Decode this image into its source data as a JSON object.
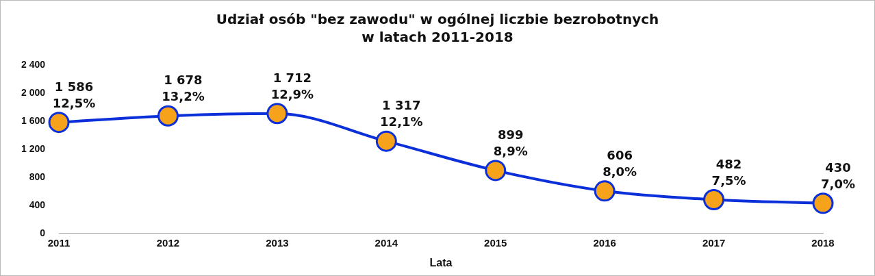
{
  "chart_data": {
    "type": "line",
    "title": "Udział osób \"bez zawodu\" w ogólnej liczbie bezrobotnych w latach 2011-2018",
    "xlabel": "Lata",
    "categories": [
      "2011",
      "2012",
      "2013",
      "2014",
      "2015",
      "2016",
      "2017",
      "2018"
    ],
    "series": [
      {
        "color": "#0b2fd8",
        "values": [
          1586,
          1678,
          1712,
          1317,
          899,
          606,
          482,
          430
        ],
        "value_labels": [
          "1 586\n12,5%",
          "1 678\n13,2%",
          "1 712\n12,9%",
          "1 317\n12,1%",
          "899\n8,9%",
          "606\n8,0%",
          "482\n7,5%",
          "430\n7,0%"
        ]
      }
    ],
    "ylim": [
      0,
      2400
    ],
    "yticks": [
      {
        "value": 0,
        "label": "0"
      },
      {
        "value": 400,
        "label": "400"
      },
      {
        "value": 800,
        "label": "800"
      },
      {
        "value": 1200,
        "label": "1 200"
      },
      {
        "value": 1600,
        "label": "1 600"
      },
      {
        "value": 2000,
        "label": "2 000"
      },
      {
        "value": 2400,
        "label": "2 400"
      }
    ],
    "grid": false,
    "legend": false,
    "marker": "circle",
    "line_style": "solid"
  }
}
